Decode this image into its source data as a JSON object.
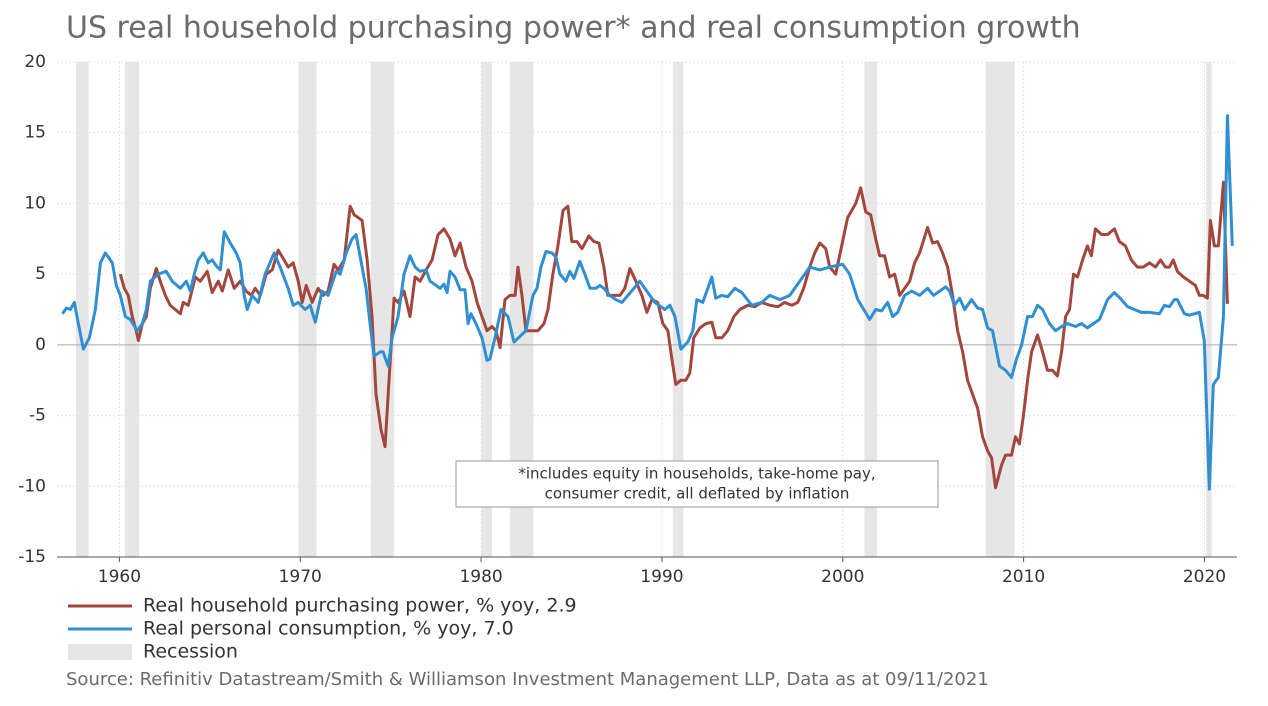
{
  "chart_data": {
    "type": "line",
    "title": "US real household purchasing power* and real consumption growth",
    "source": "Source: Refinitiv Datastream/Smith & Williamson Investment Management LLP, Data as at 09/11/2021",
    "annotation": [
      "*includes equity in households, take-home pay,",
      "consumer credit, all deflated by inflation"
    ],
    "xlim": [
      1956.55,
      2021.8
    ],
    "ylim": [
      -15,
      20
    ],
    "xticks": [
      1960,
      1970,
      1980,
      1990,
      2000,
      2010,
      2020
    ],
    "yticks": [
      -15,
      -10,
      -5,
      0,
      5,
      10,
      15,
      20
    ],
    "grid": true,
    "legend": "bottom",
    "recessions": {
      "name": "Recession",
      "color": "#e6e6e6",
      "periods": [
        [
          1957.6,
          1958.3
        ],
        [
          1960.3,
          1961.1
        ],
        [
          1969.9,
          1970.9
        ],
        [
          1973.9,
          1975.2
        ],
        [
          1980.0,
          1980.6
        ],
        [
          1981.6,
          1982.9
        ],
        [
          1990.6,
          1991.2
        ],
        [
          2001.2,
          2001.9
        ],
        [
          2007.9,
          2009.5
        ],
        [
          2020.1,
          2020.4
        ]
      ]
    },
    "series": [
      {
        "name": "Real household purchasing power, % yoy, 2.9",
        "color": "#a2473e",
        "x": [
          1960.05,
          1960.27,
          1960.49,
          1960.71,
          1960.93,
          1961.05,
          1961.27,
          1961.49,
          1961.71,
          1962.04,
          1962.26,
          1962.54,
          1962.81,
          1963.09,
          1963.37,
          1963.53,
          1963.81,
          1964.2,
          1964.47,
          1964.86,
          1965.13,
          1965.47,
          1965.69,
          1966.02,
          1966.35,
          1966.68,
          1967.01,
          1967.29,
          1967.51,
          1967.79,
          1968.12,
          1968.45,
          1968.78,
          1969.11,
          1969.33,
          1969.61,
          1969.89,
          1970.11,
          1970.33,
          1970.66,
          1970.99,
          1971.27,
          1971.54,
          1971.87,
          1972.09,
          1972.43,
          1972.76,
          1972.98,
          1973.2,
          1973.42,
          1973.7,
          1973.97,
          1974.19,
          1974.47,
          1974.69,
          1974.91,
          1975.19,
          1975.41,
          1975.74,
          1976.07,
          1976.35,
          1976.63,
          1976.96,
          1977.29,
          1977.62,
          1977.95,
          1978.28,
          1978.56,
          1978.84,
          1979.17,
          1979.5,
          1979.78,
          1980.05,
          1980.33,
          1980.6,
          1980.82,
          1981.05,
          1981.32,
          1981.6,
          1981.88,
          1982.04,
          1982.26,
          1982.48,
          1982.81,
          1983.14,
          1983.48,
          1983.7,
          1983.97,
          1984.25,
          1984.53,
          1984.8,
          1985.02,
          1985.3,
          1985.58,
          1985.96,
          1986.24,
          1986.52,
          1986.79,
          1987.01,
          1987.34,
          1987.68,
          1987.95,
          1988.23,
          1988.56,
          1988.89,
          1989.17,
          1989.44,
          1989.77,
          1990.05,
          1990.33,
          1990.55,
          1990.77,
          1991.05,
          1991.32,
          1991.54,
          1991.76,
          1992.1,
          1992.43,
          1992.76,
          1992.98,
          1993.31,
          1993.64,
          1993.98,
          1994.31,
          1994.75,
          1995.13,
          1995.52,
          1995.96,
          1996.41,
          1996.79,
          1997.18,
          1997.51,
          1997.84,
          1998.17,
          1998.45,
          1998.73,
          1999.06,
          1999.28,
          1999.61,
          1999.94,
          2000.27,
          2000.72,
          2000.99,
          2001.27,
          2001.54,
          2001.82,
          2002.04,
          2002.31,
          2002.59,
          2002.87,
          2003.15,
          2003.42,
          2003.7,
          2003.97,
          2004.25,
          2004.69,
          2004.97,
          2005.24,
          2005.52,
          2005.8,
          2006.07,
          2006.35,
          2006.63,
          2006.9,
          2007.18,
          2007.46,
          2007.73,
          2008.01,
          2008.23,
          2008.45,
          2008.78,
          2009.0,
          2009.33,
          2009.55,
          2009.77,
          2009.99,
          2010.22,
          2010.44,
          2010.77,
          2011.05,
          2011.32,
          2011.6,
          2011.87,
          2012.1,
          2012.32,
          2012.54,
          2012.76,
          2012.98,
          2013.26,
          2013.53,
          2013.75,
          2013.97,
          2014.31,
          2014.64,
          2015.02,
          2015.3,
          2015.63,
          2015.96,
          2016.29,
          2016.62,
          2016.96,
          2017.29,
          2017.57,
          2017.84,
          2018.06,
          2018.28,
          2018.5,
          2018.84,
          2019.17,
          2019.5,
          2019.72,
          2019.94,
          2020.16,
          2020.33,
          2020.55,
          2020.77,
          2021.05,
          2021.27
        ],
        "values": [
          5.0,
          4.0,
          3.5,
          2.0,
          1.0,
          0.3,
          1.5,
          2.0,
          4.0,
          5.4,
          4.5,
          3.5,
          2.8,
          2.5,
          2.2,
          3.0,
          2.8,
          4.8,
          4.5,
          5.2,
          3.7,
          4.5,
          3.8,
          5.3,
          4.0,
          4.5,
          3.8,
          3.5,
          4.0,
          3.5,
          5.0,
          5.3,
          6.7,
          6.0,
          5.5,
          5.8,
          4.5,
          3.0,
          4.2,
          3.0,
          4.0,
          3.5,
          3.8,
          5.7,
          5.3,
          6.0,
          9.8,
          9.2,
          9.0,
          8.8,
          6.0,
          2.0,
          -3.5,
          -6.0,
          -7.2,
          -2.5,
          3.3,
          3.0,
          3.8,
          2.0,
          4.8,
          4.5,
          5.3,
          6.0,
          7.8,
          8.2,
          7.5,
          6.3,
          7.2,
          5.5,
          4.5,
          3.0,
          2.0,
          1.0,
          1.3,
          1.0,
          -0.2,
          3.2,
          3.5,
          3.5,
          5.5,
          3.5,
          1.0,
          1.0,
          1.0,
          1.5,
          2.5,
          5.0,
          7.0,
          9.5,
          9.8,
          7.3,
          7.3,
          6.8,
          7.7,
          7.3,
          7.2,
          5.5,
          3.5,
          3.5,
          3.5,
          4.0,
          5.4,
          4.5,
          3.5,
          2.3,
          3.2,
          3.0,
          1.5,
          1.0,
          -1.0,
          -2.8,
          -2.5,
          -2.5,
          -2.0,
          0.5,
          1.2,
          1.5,
          1.6,
          0.5,
          0.5,
          1.0,
          2.0,
          2.5,
          2.8,
          2.7,
          3.0,
          2.8,
          2.7,
          3.0,
          2.8,
          3.0,
          4.0,
          5.5,
          6.5,
          7.2,
          6.8,
          5.5,
          5.0,
          7.0,
          9.0,
          10.0,
          11.1,
          9.4,
          9.2,
          7.5,
          6.3,
          6.3,
          4.8,
          5.0,
          3.5,
          4.0,
          4.5,
          5.8,
          6.5,
          8.3,
          7.2,
          7.3,
          6.5,
          5.5,
          3.5,
          1.0,
          -0.5,
          -2.5,
          -3.5,
          -4.5,
          -6.5,
          -7.5,
          -8.0,
          -10.1,
          -8.5,
          -7.8,
          -7.8,
          -6.5,
          -7.0,
          -5.0,
          -2.5,
          -0.5,
          0.7,
          -0.5,
          -1.8,
          -1.8,
          -2.2,
          -0.5,
          2.0,
          2.5,
          5.0,
          4.8,
          6.0,
          7.0,
          6.3,
          8.2,
          7.8,
          7.8,
          8.2,
          7.3,
          7.0,
          6.0,
          5.5,
          5.5,
          5.8,
          5.5,
          6.0,
          5.5,
          5.5,
          6.0,
          5.2,
          4.8,
          4.5,
          4.2,
          3.5,
          3.5,
          3.3,
          8.8,
          7.0,
          7.0,
          11.5,
          2.9
        ]
      },
      {
        "name": "Real personal consumption, % yoy, 7.0",
        "color": "#2f8fd1",
        "x": [
          1956.85,
          1957.07,
          1957.29,
          1957.51,
          1957.73,
          1958.01,
          1958.34,
          1958.67,
          1958.95,
          1959.22,
          1959.61,
          1959.83,
          1960.05,
          1960.33,
          1960.6,
          1960.99,
          1961.27,
          1961.49,
          1961.71,
          1962.15,
          1962.59,
          1962.92,
          1963.37,
          1963.7,
          1963.92,
          1964.14,
          1964.36,
          1964.64,
          1964.91,
          1965.13,
          1965.41,
          1965.58,
          1965.8,
          1966.13,
          1966.46,
          1966.68,
          1966.9,
          1967.07,
          1967.34,
          1967.68,
          1968.06,
          1968.56,
          1968.89,
          1969.33,
          1969.61,
          1969.89,
          1970.27,
          1970.55,
          1970.83,
          1971.21,
          1971.54,
          1971.99,
          1972.21,
          1972.54,
          1972.87,
          1973.09,
          1973.42,
          1973.64,
          1973.86,
          1974.08,
          1974.41,
          1974.58,
          1974.86,
          1975.08,
          1975.41,
          1975.74,
          1976.07,
          1976.35,
          1976.63,
          1976.96,
          1977.18,
          1977.51,
          1977.73,
          1977.95,
          1978.12,
          1978.28,
          1978.56,
          1978.84,
          1979.11,
          1979.28,
          1979.44,
          1979.72,
          1980.05,
          1980.33,
          1980.49,
          1980.77,
          1981.1,
          1981.49,
          1981.82,
          1982.15,
          1982.48,
          1982.87,
          1983.09,
          1983.31,
          1983.59,
          1983.92,
          1984.14,
          1984.36,
          1984.69,
          1984.91,
          1985.13,
          1985.46,
          1985.74,
          1986.02,
          1986.35,
          1986.57,
          1986.79,
          1987.12,
          1987.45,
          1987.79,
          1988.78,
          1989.33,
          1989.61,
          1990.16,
          1990.44,
          1990.72,
          1991.05,
          1991.43,
          1991.71,
          1991.93,
          1992.26,
          1992.76,
          1992.98,
          1993.31,
          1993.64,
          1994.03,
          1994.42,
          1994.97,
          1995.52,
          1995.96,
          1996.52,
          1997.07,
          1997.62,
          1998.17,
          1998.73,
          1999.28,
          1999.99,
          2000.38,
          2000.83,
          2001.16,
          2001.49,
          2001.82,
          2002.15,
          2002.48,
          2002.76,
          2003.04,
          2003.42,
          2003.81,
          2004.25,
          2004.69,
          2005.02,
          2005.36,
          2005.69,
          2005.91,
          2006.18,
          2006.46,
          2006.74,
          2007.12,
          2007.46,
          2007.73,
          2008.01,
          2008.28,
          2008.67,
          2009.0,
          2009.33,
          2009.61,
          2009.89,
          2010.22,
          2010.49,
          2010.77,
          2011.05,
          2011.43,
          2011.76,
          2012.1,
          2012.43,
          2012.87,
          2013.2,
          2013.53,
          2013.86,
          2014.2,
          2014.42,
          2014.64,
          2015.02,
          2015.41,
          2015.74,
          2016.13,
          2016.51,
          2016.96,
          2017.51,
          2017.79,
          2018.06,
          2018.34,
          2018.5,
          2018.89,
          2019.17,
          2019.72,
          2019.99,
          2020.27,
          2020.49,
          2020.77,
          2021.05,
          2021.27,
          2021.54
        ],
        "values": [
          2.2,
          2.6,
          2.5,
          3.0,
          1.5,
          -0.3,
          0.5,
          2.5,
          5.8,
          6.5,
          5.8,
          4.2,
          3.5,
          2.0,
          1.8,
          1.0,
          1.5,
          2.5,
          4.5,
          5.0,
          5.2,
          4.5,
          4.0,
          4.5,
          3.8,
          5.0,
          6.0,
          6.5,
          5.8,
          6.0,
          5.5,
          5.3,
          8.0,
          7.2,
          6.5,
          5.8,
          3.5,
          2.5,
          3.5,
          3.0,
          5.0,
          6.5,
          5.5,
          4.0,
          2.8,
          3.0,
          2.5,
          2.8,
          1.6,
          3.8,
          3.5,
          5.2,
          5.0,
          6.5,
          7.5,
          7.8,
          5.5,
          4.0,
          1.5,
          -0.8,
          -0.5,
          -0.5,
          -1.5,
          0.5,
          2.0,
          5.0,
          6.3,
          5.5,
          5.2,
          5.3,
          4.5,
          4.2,
          4.0,
          4.3,
          3.7,
          5.2,
          4.8,
          3.9,
          3.9,
          1.5,
          2.2,
          1.5,
          0.5,
          -1.1,
          -1.0,
          0.5,
          2.5,
          2.0,
          0.2,
          0.6,
          1.0,
          3.5,
          4.0,
          5.5,
          6.6,
          6.5,
          6.2,
          5.0,
          4.5,
          5.2,
          4.7,
          5.9,
          5.0,
          4.0,
          4.0,
          4.2,
          4.0,
          3.5,
          3.2,
          3.0,
          4.5,
          3.5,
          3.0,
          2.5,
          2.8,
          2.0,
          -0.3,
          0.2,
          1.0,
          3.2,
          3.0,
          4.8,
          3.3,
          3.5,
          3.4,
          4.0,
          3.7,
          2.8,
          3.0,
          3.5,
          3.2,
          3.5,
          4.5,
          5.5,
          5.3,
          5.5,
          5.7,
          5.0,
          3.2,
          2.5,
          1.8,
          2.5,
          2.4,
          3.0,
          2.0,
          2.3,
          3.5,
          3.8,
          3.5,
          4.0,
          3.5,
          3.8,
          4.1,
          3.8,
          2.8,
          3.3,
          2.5,
          3.2,
          2.6,
          2.5,
          1.2,
          1.0,
          -1.5,
          -1.8,
          -2.3,
          -1.0,
          0.0,
          2.0,
          2.0,
          2.8,
          2.5,
          1.5,
          1.0,
          1.3,
          1.5,
          1.3,
          1.5,
          1.2,
          1.5,
          1.8,
          2.5,
          3.2,
          3.7,
          3.2,
          2.7,
          2.5,
          2.3,
          2.3,
          2.2,
          2.8,
          2.7,
          3.2,
          3.2,
          2.2,
          2.1,
          2.3,
          0.3,
          -10.2,
          -2.8,
          -2.3,
          2.0,
          16.2,
          7.0
        ]
      }
    ]
  }
}
